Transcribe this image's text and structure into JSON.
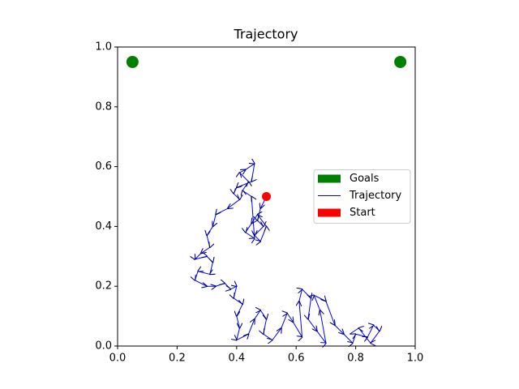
{
  "chart_data": {
    "type": "line",
    "title": "Trajectory",
    "xlim": [
      0,
      1
    ],
    "ylim": [
      0,
      1
    ],
    "xticks": [
      {
        "value": 0,
        "label": "0.0"
      },
      0.2,
      0.4,
      0.6,
      0.8,
      {
        "value": 1,
        "label": "1.0"
      }
    ],
    "yticks": [
      {
        "value": 0,
        "label": "0.0"
      },
      0.2,
      0.4,
      0.6,
      0.8,
      {
        "value": 1,
        "label": "1.0"
      }
    ],
    "legend": "center right",
    "series": [
      {
        "name": "Goals",
        "color": "green",
        "style": "marker",
        "x": [
          0.05,
          0.95
        ],
        "values": [
          0.95,
          0.95
        ]
      },
      {
        "name": "Trajectory",
        "color": "blue",
        "style": "line",
        "x": [
          0.5,
          0.48,
          0.47,
          0.49,
          0.46,
          0.48,
          0.5,
          0.47,
          0.45,
          0.43,
          0.46,
          0.45,
          0.42,
          0.44,
          0.41,
          0.43,
          0.46,
          0.45,
          0.4,
          0.39,
          0.41,
          0.37,
          0.33,
          0.32,
          0.3,
          0.31,
          0.28,
          0.26,
          0.3,
          0.32,
          0.31,
          0.27,
          0.26,
          0.3,
          0.33,
          0.36,
          0.38,
          0.4,
          0.39,
          0.42,
          0.4,
          0.41,
          0.4,
          0.44,
          0.46,
          0.48,
          0.5,
          0.49,
          0.52,
          0.55,
          0.57,
          0.59,
          0.62,
          0.61,
          0.62,
          0.65,
          0.64,
          0.67,
          0.7,
          0.68,
          0.66,
          0.7,
          0.73,
          0.76,
          0.79,
          0.8,
          0.84,
          0.86,
          0.88,
          0.85,
          0.81,
          0.78
        ],
        "values": [
          0.5,
          0.46,
          0.42,
          0.4,
          0.37,
          0.35,
          0.4,
          0.44,
          0.41,
          0.38,
          0.36,
          0.5,
          0.52,
          0.55,
          0.58,
          0.59,
          0.61,
          0.55,
          0.53,
          0.51,
          0.49,
          0.46,
          0.44,
          0.4,
          0.37,
          0.33,
          0.31,
          0.29,
          0.3,
          0.28,
          0.24,
          0.25,
          0.22,
          0.2,
          0.2,
          0.21,
          0.19,
          0.2,
          0.16,
          0.14,
          0.1,
          0.06,
          0.02,
          0.04,
          0.09,
          0.12,
          0.09,
          0.04,
          0.02,
          0.06,
          0.11,
          0.08,
          0.03,
          0.15,
          0.19,
          0.16,
          0.09,
          0.05,
          0.01,
          0.12,
          0.17,
          0.15,
          0.07,
          0.04,
          0.01,
          0.04,
          0.03,
          0.07,
          0.05,
          0.01,
          0.06,
          0.04
        ]
      },
      {
        "name": "Start",
        "color": "red",
        "style": "marker",
        "x": [
          0.5
        ],
        "values": [
          0.5
        ]
      }
    ]
  }
}
